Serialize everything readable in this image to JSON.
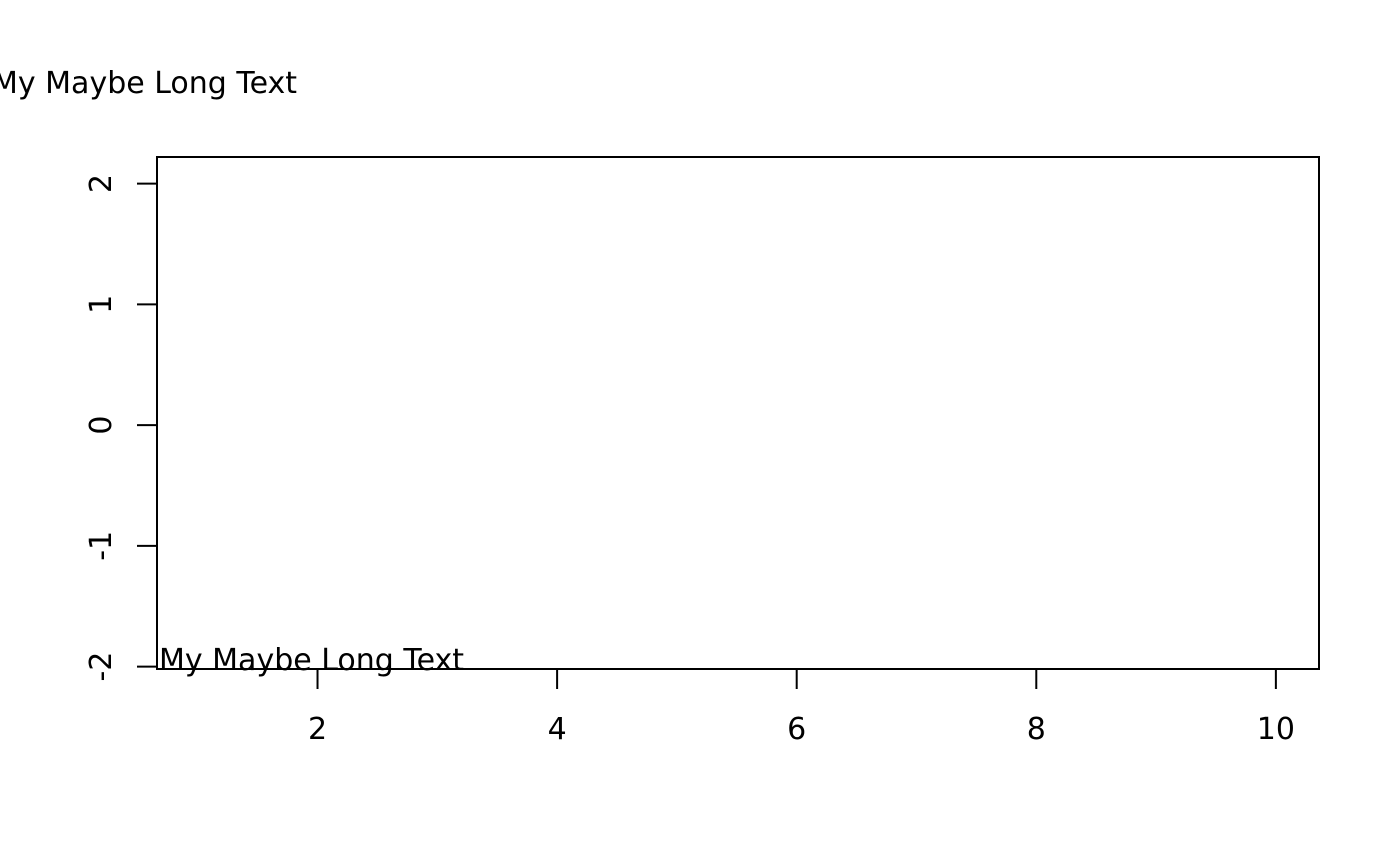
{
  "chart_data": {
    "type": "scatter",
    "title": "",
    "xlabel": "",
    "ylabel": "",
    "xlim": [
      0.66,
      10.36
    ],
    "ylim": [
      -2.02,
      2.22
    ],
    "x_ticks": [
      2,
      4,
      6,
      8,
      10
    ],
    "y_ticks": [
      -2,
      -1,
      0,
      1,
      2
    ],
    "x_tick_labels": [
      "2",
      "4",
      "6",
      "8",
      "10"
    ],
    "y_tick_labels": [
      "-2",
      "-1",
      "0",
      "1",
      "2"
    ],
    "points": [],
    "grid": false,
    "annotations": [
      {
        "text": "My Maybe Long Text",
        "x": 0.66,
        "y": -2.02,
        "placement": "inside-bottom-left"
      }
    ]
  },
  "margin_text": {
    "text": "My Maybe Long Text",
    "placement": "top-left-outer-margin"
  }
}
